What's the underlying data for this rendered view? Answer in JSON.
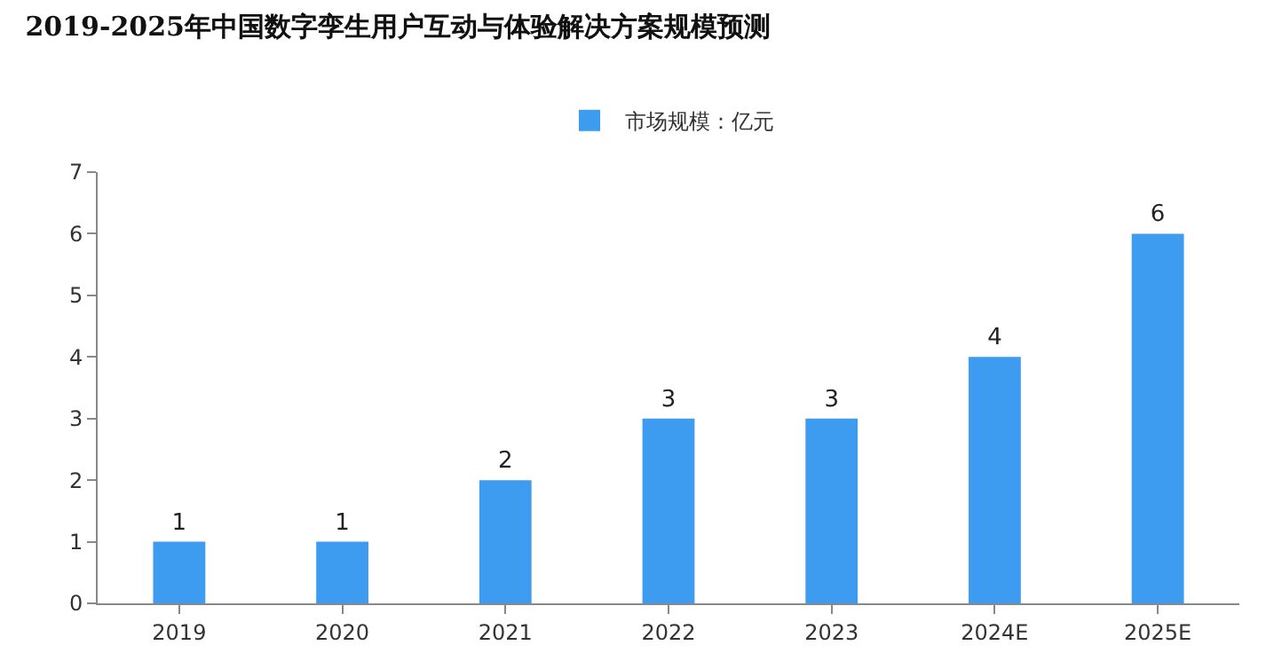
{
  "chart_data": {
    "type": "bar",
    "title": "2019-2025年中国数字孪生用户互动与体验解决方案规模预测",
    "categories": [
      "2019",
      "2020",
      "2021",
      "2022",
      "2023",
      "2024E",
      "2025E"
    ],
    "series": [
      {
        "name": "市场规模：亿元",
        "color": "#3d9bf0",
        "values": [
          1,
          1,
          2,
          3,
          3,
          4,
          6
        ]
      }
    ],
    "ylim": [
      0,
      7
    ],
    "yticks": [
      0,
      1,
      2,
      3,
      4,
      5,
      6,
      7
    ],
    "grid": false,
    "legend": "top",
    "data_labels": true
  }
}
